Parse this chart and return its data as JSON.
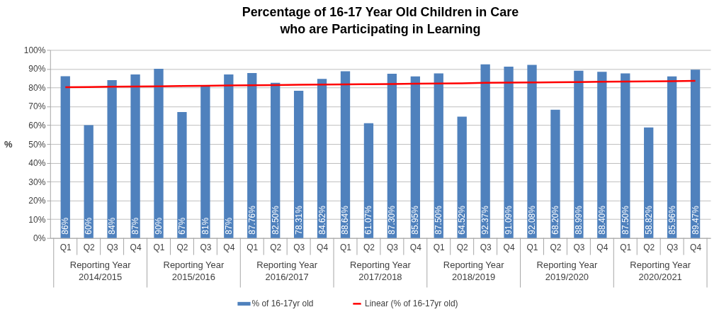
{
  "chart_data": {
    "type": "bar",
    "title": "Percentage of 16-17 Year Old Children in Care\nwho are Participating in Learning",
    "ylabel": "%",
    "categories": [
      "Q1",
      "Q2",
      "Q3",
      "Q4",
      "Q1",
      "Q2",
      "Q3",
      "Q4",
      "Q1",
      "Q2",
      "Q3",
      "Q4",
      "Q1",
      "Q2",
      "Q3",
      "Q4",
      "Q1",
      "Q2",
      "Q3",
      "Q4",
      "Q1",
      "Q2",
      "Q3",
      "Q4",
      "Q1",
      "Q2",
      "Q3",
      "Q4"
    ],
    "annotations": [
      "Reporting Year\n2014/2015",
      "Reporting Year\n2015/2016",
      "Reporting Year\n2016/2017",
      "Reporting Year\n2017/2018",
      "Reporting Year\n2018/2019",
      "Reporting Year\n2019/2020",
      "Reporting Year\n2020/2021"
    ],
    "series": [
      {
        "name": "% of 16-17yr old",
        "color": "#4f81bd",
        "values": [
          86,
          60,
          84,
          87,
          90,
          67,
          81,
          87,
          87.76,
          82.5,
          78.31,
          84.62,
          88.64,
          61.07,
          87.3,
          85.95,
          87.5,
          64.52,
          92.37,
          91.09,
          92.08,
          68.2,
          88.99,
          88.4,
          87.5,
          58.82,
          85.96,
          89.47
        ],
        "value_labels": [
          "86%",
          "60%",
          "84%",
          "87%",
          "90%",
          "67%",
          "81%",
          "87%",
          "87.76%",
          "82.50%",
          "78.31%",
          "84.62%",
          "88.64%",
          "61.07%",
          "87.30%",
          "85.95%",
          "87.50%",
          "64.52%",
          "92.37%",
          "91.09%",
          "92.08%",
          "68.20%",
          "88.99%",
          "88.40%",
          "87.50%",
          "58.82%",
          "85.96%",
          "89.47%"
        ]
      },
      {
        "name": "Linear (% of 16-17yr old)",
        "type": "line",
        "color": "#ff0000",
        "values": [
          80.2,
          80.3,
          80.5,
          80.6,
          80.7,
          80.8,
          80.9,
          81.1,
          81.2,
          81.3,
          81.5,
          81.6,
          81.7,
          81.8,
          81.9,
          82.1,
          82.2,
          82.3,
          82.5,
          82.6,
          82.7,
          82.8,
          82.9,
          83.1,
          83.2,
          83.3,
          83.4,
          83.6
        ]
      }
    ],
    "ylim": [
      0,
      100
    ],
    "yticks": [
      {
        "value": 0,
        "label": "0%"
      },
      {
        "value": 10,
        "label": "10%"
      },
      {
        "value": 20,
        "label": "20%"
      },
      {
        "value": 30,
        "label": "30%"
      },
      {
        "value": 40,
        "label": "40%"
      },
      {
        "value": 50,
        "label": "50%"
      },
      {
        "value": 60,
        "label": "60%"
      },
      {
        "value": 70,
        "label": "70%"
      },
      {
        "value": 80,
        "label": "80%"
      },
      {
        "value": 90,
        "label": "90%"
      },
      {
        "value": 100,
        "label": "100%"
      }
    ],
    "grid": "y",
    "legend": "bottom"
  }
}
